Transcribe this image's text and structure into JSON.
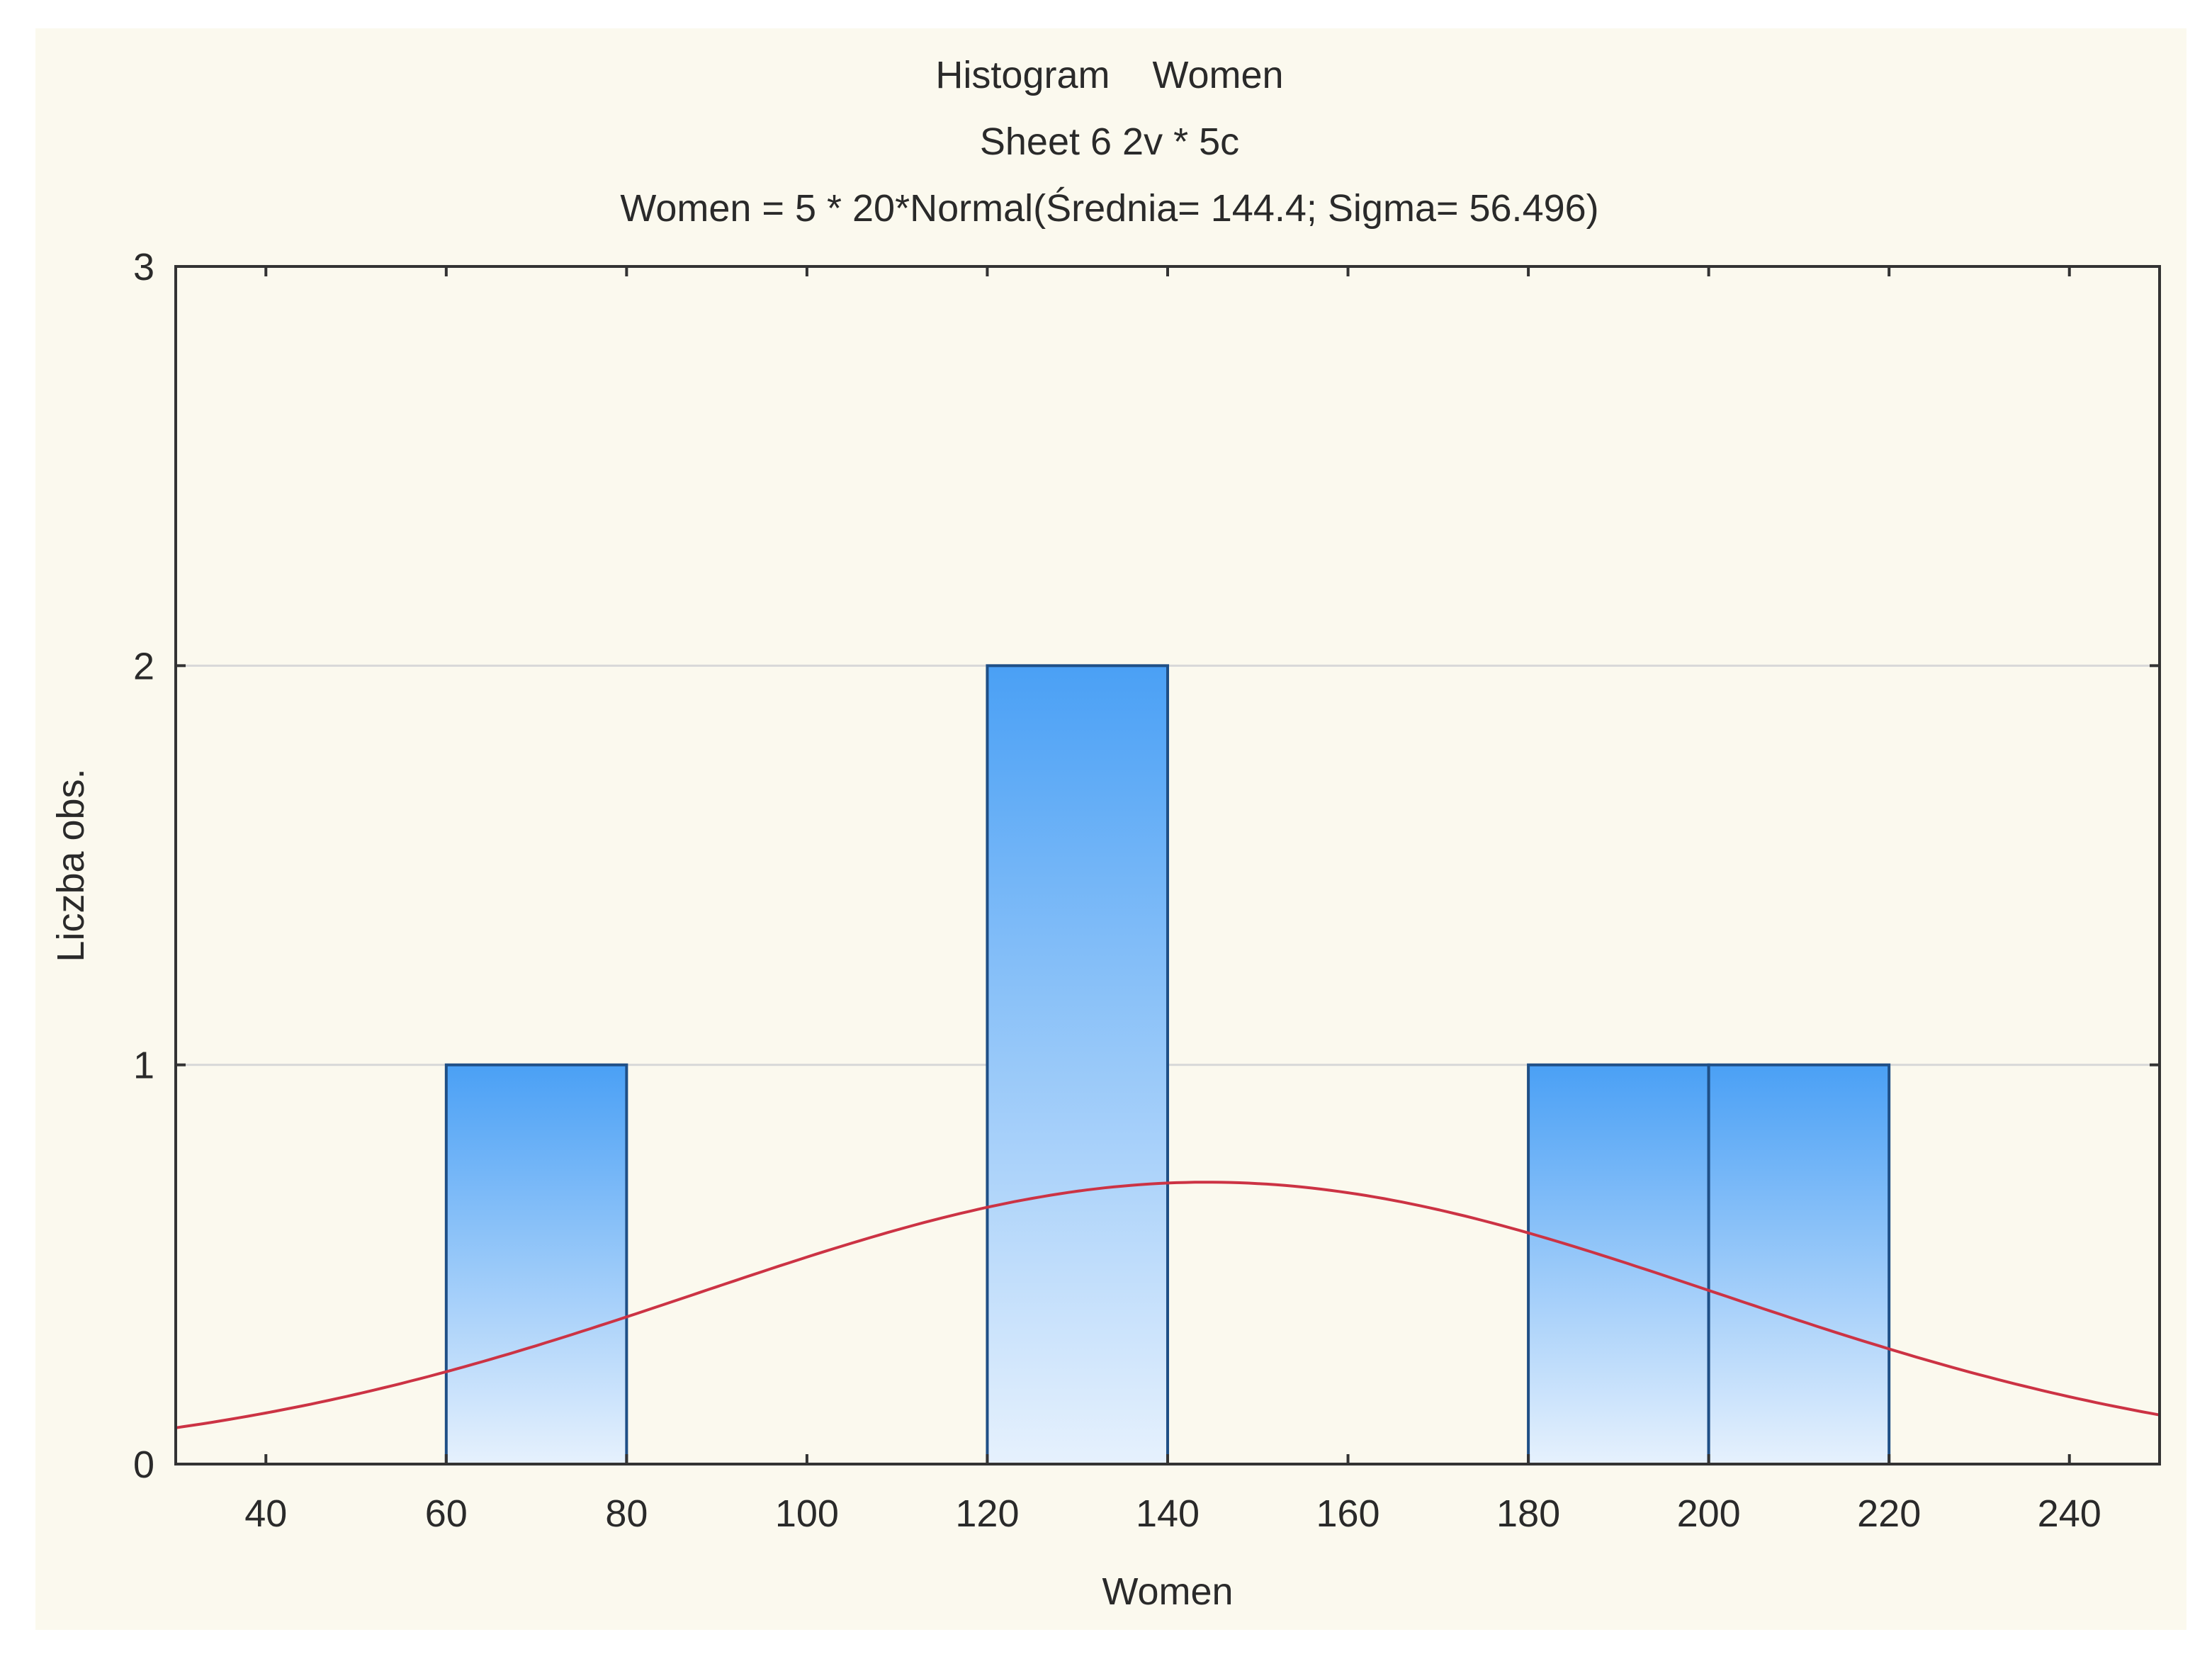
{
  "chart_data": {
    "type": "bar",
    "title": "Histogram    Women",
    "subtitle": "Sheet 6 2v * 5c",
    "annotation": "Women = 5 * 20*Normal(Średnia= 144.4; Sigma= 56.496)",
    "xlabel": "Women",
    "ylabel": "Liczba obs.",
    "xlim": [
      30,
      250
    ],
    "ylim": [
      0,
      3
    ],
    "x_ticks": [
      40,
      60,
      80,
      100,
      120,
      140,
      160,
      180,
      200,
      220,
      240
    ],
    "y_ticks": [
      0,
      1,
      2,
      3
    ],
    "grid": true,
    "bins": [
      {
        "start": 60,
        "end": 80,
        "count": 1
      },
      {
        "start": 120,
        "end": 140,
        "count": 2
      },
      {
        "start": 180,
        "end": 200,
        "count": 1
      },
      {
        "start": 200,
        "end": 220,
        "count": 1
      }
    ],
    "normal_curve": {
      "n": 5,
      "bin_width": 20,
      "mean": 144.4,
      "sigma": 56.496
    },
    "colors": {
      "bar_top": "#4aa0f5",
      "bar_bottom": "#e6f1fd",
      "bar_stroke": "#1f4f86",
      "curve": "#cc3344",
      "grid": "#d8d8d8",
      "axis": "#333333",
      "background": "#fbf9ee"
    }
  }
}
